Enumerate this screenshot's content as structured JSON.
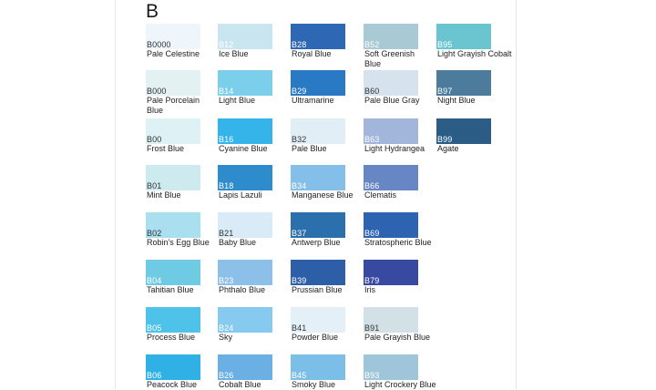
{
  "heading": "B",
  "swatches": [
    {
      "code": "B0000",
      "name": "Pale Celestine",
      "color": "#eef6fb",
      "text": "#333333"
    },
    {
      "code": "B000",
      "name": "Pale Porcelain Blue",
      "color": "#e3f1f3",
      "text": "#333333"
    },
    {
      "code": "B00",
      "name": "Frost Blue",
      "color": "#def1f5",
      "text": "#333333"
    },
    {
      "code": "B01",
      "name": "Mint Blue",
      "color": "#cdebee",
      "text": "#333333"
    },
    {
      "code": "B02",
      "name": "Robin's Egg Blue",
      "color": "#aadff0",
      "text": "#333333"
    },
    {
      "code": "B04",
      "name": "Tahitian Blue",
      "color": "#6fcbe3",
      "text": "#ffffff"
    },
    {
      "code": "B05",
      "name": "Process  Blue",
      "color": "#4ec2e8",
      "text": "#ffffff"
    },
    {
      "code": "B06",
      "name": "Peacock  Blue",
      "color": "#2fb1e6",
      "text": "#ffffff"
    },
    {
      "code": "B12",
      "name": "Ice Blue",
      "color": "#c9e5ef",
      "text": "#ffffff"
    },
    {
      "code": "B14",
      "name": "Light Blue",
      "color": "#7ccfea",
      "text": "#ffffff"
    },
    {
      "code": "B16",
      "name": "Cyanine Blue",
      "color": "#35b4e9",
      "text": "#ffffff"
    },
    {
      "code": "B18",
      "name": "Lapis Lazuli",
      "color": "#2f8ccc",
      "text": "#ffffff"
    },
    {
      "code": "B21",
      "name": "Baby Blue",
      "color": "#d9ebf7",
      "text": "#333333"
    },
    {
      "code": "B23",
      "name": "Phthalo Blue",
      "color": "#8cc0e9",
      "text": "#ffffff"
    },
    {
      "code": "B24",
      "name": "Sky",
      "color": "#86caf0",
      "text": "#ffffff"
    },
    {
      "code": "B26",
      "name": "Cobalt  Blue",
      "color": "#6ab0e4",
      "text": "#ffffff"
    },
    {
      "code": "B28",
      "name": "Royal Blue",
      "color": "#2e68b4",
      "text": "#ffffff"
    },
    {
      "code": "B29",
      "name": "Ultramarine",
      "color": "#2a79c5",
      "text": "#ffffff"
    },
    {
      "code": "B32",
      "name": "Pale Blue",
      "color": "#e1eef5",
      "text": "#333333"
    },
    {
      "code": "B34",
      "name": "Manganese Blue",
      "color": "#84bfea",
      "text": "#ffffff"
    },
    {
      "code": "B37",
      "name": "Antwerp Blue",
      "color": "#2b6fac",
      "text": "#ffffff"
    },
    {
      "code": "B39",
      "name": "Prussian Blue",
      "color": "#2c5fa8",
      "text": "#ffffff"
    },
    {
      "code": "B41",
      "name": "Powder Blue",
      "color": "#e3f0f8",
      "text": "#333333"
    },
    {
      "code": "B45",
      "name": "Smoky Blue",
      "color": "#7bbfe8",
      "text": "#ffffff"
    },
    {
      "code": "B52",
      "name": "Soft Greenish Blue",
      "color": "#a9c9d5",
      "text": "#ffffff"
    },
    {
      "code": "B60",
      "name": "Pale Blue Gray",
      "color": "#d6e2ee",
      "text": "#333333"
    },
    {
      "code": "B63",
      "name": "Light Hydrangea",
      "color": "#a2b5db",
      "text": "#ffffff"
    },
    {
      "code": "B66",
      "name": "Clematis",
      "color": "#6686c4",
      "text": "#ffffff"
    },
    {
      "code": "B69",
      "name": "Stratospheric Blue",
      "color": "#2d63b0",
      "text": "#ffffff"
    },
    {
      "code": "B79",
      "name": "Iris",
      "color": "#3749a0",
      "text": "#ffffff"
    },
    {
      "code": "B91",
      "name": "Pale Grayish Blue",
      "color": "#d2e1e6",
      "text": "#333333"
    },
    {
      "code": "B93",
      "name": "Light Crockery Blue",
      "color": "#9fc5da",
      "text": "#ffffff"
    },
    {
      "code": "B95",
      "name": "Light Grayish Cobalt",
      "color": "#6ac5d0",
      "text": "#ffffff"
    },
    {
      "code": "B97",
      "name": "Night Blue",
      "color": "#4d7b9c",
      "text": "#ffffff"
    },
    {
      "code": "B99",
      "name": "Agate",
      "color": "#2a5c86",
      "text": "#ffffff"
    }
  ]
}
